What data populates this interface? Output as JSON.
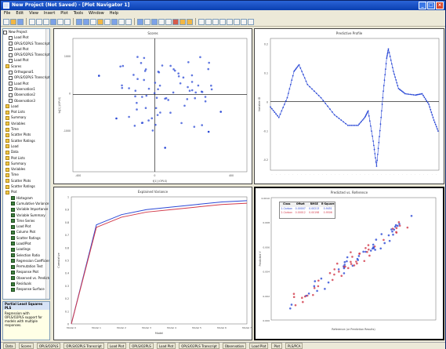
{
  "window": {
    "title": "New Project (Not Saved) - [Plot Navigator 1]"
  },
  "menu": [
    "File",
    "Edit",
    "View",
    "Insert",
    "Plot",
    "Tools",
    "Window",
    "Help"
  ],
  "tree": [
    {
      "label": "New Project",
      "icon": "project"
    },
    {
      "label": "Load Plot",
      "icon": "plot"
    },
    {
      "label": "OPLS/O2PLS Transcript",
      "icon": "plot"
    },
    {
      "label": "Load Plot",
      "icon": "plot"
    },
    {
      "label": "OPLS/O2PLS Transcript(1)",
      "icon": "plot"
    },
    {
      "label": "Load Plot",
      "icon": "plot"
    },
    {
      "label": "Scores",
      "icon": "folder"
    },
    {
      "label": "Orthogonal1",
      "icon": "plot"
    },
    {
      "label": "OPLS/O2PLS Transcript(2)",
      "icon": "plot"
    },
    {
      "label": "Load Plot",
      "icon": "plot"
    },
    {
      "label": "Observation1",
      "icon": "plot"
    },
    {
      "label": "Observation2",
      "icon": "plot"
    },
    {
      "label": "Observation3",
      "icon": "plot"
    },
    {
      "label": "Load",
      "icon": "folder"
    },
    {
      "label": "Plot Lists",
      "icon": "folder"
    },
    {
      "label": "Summary",
      "icon": "folder"
    },
    {
      "label": "Variables",
      "icon": "folder"
    },
    {
      "label": "Time",
      "icon": "folder"
    },
    {
      "label": "Scatter Plots",
      "icon": "folder"
    },
    {
      "label": "Scatter Ratings",
      "icon": "folder"
    },
    {
      "label": "Load",
      "icon": "folder"
    },
    {
      "label": "Data",
      "icon": "folder"
    },
    {
      "label": "Plot Lists",
      "icon": "folder"
    },
    {
      "label": "Summary",
      "icon": "folder"
    },
    {
      "label": "Variables",
      "icon": "folder"
    },
    {
      "label": "Time",
      "icon": "folder"
    },
    {
      "label": "Scatter Plots",
      "icon": "folder"
    },
    {
      "label": "Scatter Ratings",
      "icon": "folder"
    },
    {
      "label": "Plot",
      "icon": "folder"
    },
    {
      "label": "Histogram",
      "icon": "chart"
    },
    {
      "label": "Cumulative Variance",
      "icon": "chart"
    },
    {
      "label": "Variable Importance",
      "icon": "chart"
    },
    {
      "label": "Variable Summary",
      "icon": "chart"
    },
    {
      "label": "Time Series",
      "icon": "chart"
    },
    {
      "label": "Load Plot",
      "icon": "chart"
    },
    {
      "label": "Column Plot",
      "icon": "chart"
    },
    {
      "label": "Scatter Ratings",
      "icon": "chart"
    },
    {
      "label": "Load/Plot",
      "icon": "chart"
    },
    {
      "label": "Loadings",
      "icon": "chart"
    },
    {
      "label": "Selection Ratio",
      "icon": "chart"
    },
    {
      "label": "Regression Coefficients",
      "icon": "chart"
    },
    {
      "label": "Permutation Test",
      "icon": "chart"
    },
    {
      "label": "Response Plot",
      "icon": "chart"
    },
    {
      "label": "Observed vs. Predicted",
      "icon": "chart"
    },
    {
      "label": "Residuals",
      "icon": "chart"
    },
    {
      "label": "Response Surface",
      "icon": "chart"
    }
  ],
  "help": {
    "title": "Partial Least Squares PLS",
    "text": "Regression with OPLS/O2PLS support for models with multiple responses."
  },
  "status": [
    "Data",
    "Scores",
    "OPLS/O2PLS",
    "OPLS/O2PLS Transcript",
    "Load Plot",
    "OPLS/O2PLS",
    "Load Plot",
    "OPLS/O2PLS Transcript",
    "Observation",
    "Load Plot",
    "Plot",
    "PLS/PCA"
  ],
  "panels": {
    "scores": {
      "title": "Scores",
      "xticks": [
        "-400",
        "0",
        "400"
      ],
      "yticks": [
        "1000",
        "0",
        "-1000"
      ],
      "xlabel": "t[1] (OPLS)",
      "ylabel": "to[1] (OPLS)"
    },
    "profile": {
      "title": "Predictive Profile",
      "yticks": [
        "0.2",
        "0.1",
        "0",
        "-0.1",
        "-0.2"
      ],
      "ylabel": "Variable ID"
    },
    "variance": {
      "title": "Explained Variance",
      "yticks": [
        "1",
        "0.9",
        "0.8",
        "0.7",
        "0.6",
        "0.5",
        "0.4",
        "0.3",
        "0.2",
        "0.1",
        "0"
      ],
      "xlabel": "Model",
      "ylabel": "Cumulative",
      "xticks": [
        "Model 0",
        "Model 1",
        "Model 2",
        "Model 3",
        "Model 4",
        "Model 5",
        "Model 6",
        "Model 7"
      ]
    },
    "predicted": {
      "title": "Predicted vs. Reference",
      "xlabel": "Reference (or Prediction Results)",
      "ylabel": "Predicted Y",
      "legend": {
        "head": [
          "Class",
          "Offset",
          "RMSE",
          "R-Square"
        ],
        "rows": [
          [
            "1-Carbon",
            "0.00007",
            "0.00213",
            "0.9451"
          ],
          [
            "2-Carbon",
            "0.00012",
            "0.00198",
            "0.9506"
          ]
        ]
      }
    }
  },
  "colors": {
    "blue": "#2b49d6",
    "red": "#d23a4a"
  }
}
